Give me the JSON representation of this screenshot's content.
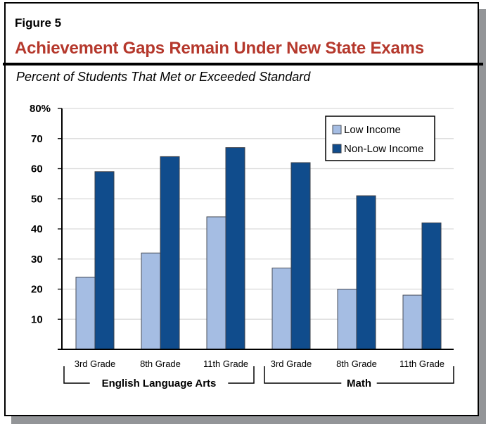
{
  "figure": {
    "label": "Figure 5",
    "title": "Achievement Gaps Remain Under New State Exams",
    "subtitle": "Percent of Students That Met or Exceeded Standard"
  },
  "colors": {
    "title": "#b5382c",
    "low_income": "#a5bde3",
    "non_low_income": "#104c8c",
    "gridline": "#d9d9d9",
    "shadow": "#939598"
  },
  "chart_data": {
    "type": "bar",
    "title": "Achievement Gaps Remain Under New State Exams",
    "subtitle": "Percent of Students That Met or Exceeded Standard",
    "xlabel": "",
    "ylabel": "Percent of Students That Met or Exceeded Standard",
    "ylim": [
      0,
      80
    ],
    "yticks": [
      "",
      "10",
      "20",
      "30",
      "40",
      "50",
      "60",
      "70",
      "80%"
    ],
    "grid": true,
    "legend_position": "upper right",
    "groups": [
      {
        "name": "English Language Arts",
        "categories": [
          "3rd Grade",
          "8th Grade",
          "11th Grade"
        ]
      },
      {
        "name": "Math",
        "categories": [
          "3rd Grade",
          "8th Grade",
          "11th Grade"
        ]
      }
    ],
    "categories": [
      "3rd Grade",
      "8th Grade",
      "11th Grade",
      "3rd Grade",
      "8th Grade",
      "11th Grade"
    ],
    "series": [
      {
        "name": "Low Income",
        "values": [
          24,
          32,
          44,
          27,
          20,
          18
        ]
      },
      {
        "name": "Non-Low Income",
        "values": [
          59,
          64,
          67,
          62,
          51,
          42
        ]
      }
    ]
  }
}
